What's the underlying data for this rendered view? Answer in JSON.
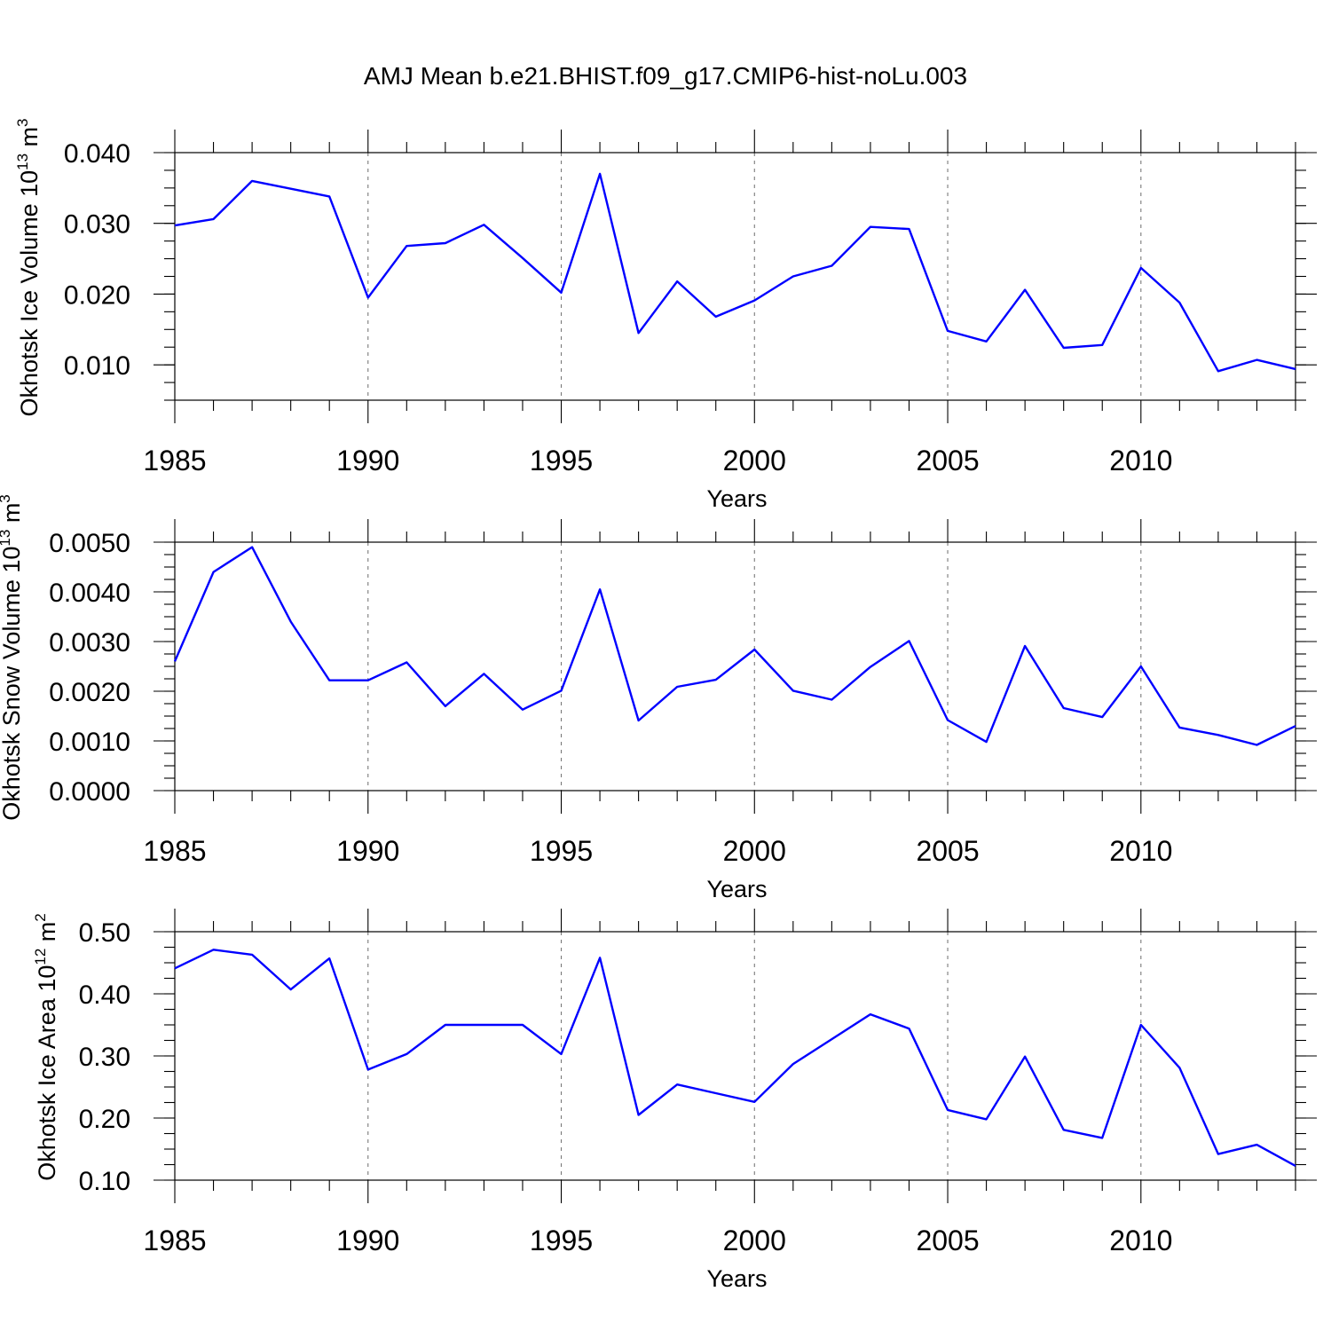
{
  "title": "AMJ Mean b.e21.BHIST.f09_g17.CMIP6-hist-noLu.003",
  "colors": {
    "line": "#0000ff",
    "axes": "#000000",
    "grid": "#7a7a7a"
  },
  "chart_data": [
    {
      "type": "line",
      "xlabel": "Years",
      "ylabel": {
        "text": "Okhotsk Ice Volume 10",
        "sup": "13",
        "unit": " m",
        "unit_sup": "3"
      },
      "xlim": [
        1985,
        2014
      ],
      "ylim": [
        0.005,
        0.04
      ],
      "xticks": [
        "1985",
        "1990",
        "1995",
        "2000",
        "2005",
        "2010"
      ],
      "yticks": [
        "0.010",
        "0.020",
        "0.030",
        "0.040"
      ],
      "grid": "vertical dashed at major x ticks",
      "x": [
        1985,
        1986,
        1987,
        1988,
        1989,
        1990,
        1991,
        1992,
        1993,
        1994,
        1995,
        1996,
        1997,
        1998,
        1999,
        2000,
        2001,
        2002,
        2003,
        2004,
        2005,
        2006,
        2007,
        2008,
        2009,
        2010,
        2011,
        2012,
        2013,
        2014
      ],
      "series": [
        {
          "values": [
            0.0297,
            0.0306,
            0.036,
            0.0349,
            0.0338,
            0.0195,
            0.0268,
            0.0272,
            0.0298,
            0.0251,
            0.0202,
            0.037,
            0.0145,
            0.0218,
            0.0168,
            0.0191,
            0.0225,
            0.024,
            0.0295,
            0.0292,
            0.0148,
            0.0133,
            0.0206,
            0.0124,
            0.0128,
            0.0237,
            0.0188,
            0.0091,
            0.0107,
            0.0094
          ]
        }
      ]
    },
    {
      "type": "line",
      "xlabel": "Years",
      "ylabel": {
        "text": "Okhotsk Snow Volume 10",
        "sup": "13",
        "unit": " m",
        "unit_sup": "3"
      },
      "xlim": [
        1985,
        2014
      ],
      "ylim": [
        0.0,
        0.005
      ],
      "xticks": [
        "1985",
        "1990",
        "1995",
        "2000",
        "2005",
        "2010"
      ],
      "yticks": [
        "0.0000",
        "0.0010",
        "0.0020",
        "0.0030",
        "0.0040",
        "0.0050"
      ],
      "grid": "vertical dashed at major x ticks",
      "x": [
        1985,
        1986,
        1987,
        1988,
        1989,
        1990,
        1991,
        1992,
        1993,
        1994,
        1995,
        1996,
        1997,
        1998,
        1999,
        2000,
        2001,
        2002,
        2003,
        2004,
        2005,
        2006,
        2007,
        2008,
        2009,
        2010,
        2011,
        2012,
        2013,
        2014
      ],
      "series": [
        {
          "values": [
            0.0026,
            0.0044,
            0.0049,
            0.0034,
            0.00222,
            0.00222,
            0.00258,
            0.0017,
            0.00235,
            0.00163,
            0.00201,
            0.00405,
            0.00141,
            0.00209,
            0.00223,
            0.00284,
            0.00201,
            0.00183,
            0.00249,
            0.00301,
            0.00142,
            0.00098,
            0.00291,
            0.00166,
            0.00148,
            0.0025,
            0.00127,
            0.00112,
            0.00092,
            0.0013
          ]
        }
      ]
    },
    {
      "type": "line",
      "xlabel": "Years",
      "ylabel": {
        "text": "Okhotsk Ice Area 10",
        "sup": "12",
        "unit": " m",
        "unit_sup": "2"
      },
      "xlim": [
        1985,
        2014
      ],
      "ylim": [
        0.1,
        0.5
      ],
      "xticks": [
        "1985",
        "1990",
        "1995",
        "2000",
        "2005",
        "2010"
      ],
      "yticks": [
        "0.10",
        "0.20",
        "0.30",
        "0.40",
        "0.50"
      ],
      "grid": "vertical dashed at major x ticks",
      "x": [
        1985,
        1986,
        1987,
        1988,
        1989,
        1990,
        1991,
        1992,
        1993,
        1994,
        1995,
        1996,
        1997,
        1998,
        1999,
        2000,
        2001,
        2002,
        2003,
        2004,
        2005,
        2006,
        2007,
        2008,
        2009,
        2010,
        2011,
        2012,
        2013,
        2014
      ],
      "series": [
        {
          "values": [
            0.441,
            0.471,
            0.463,
            0.407,
            0.457,
            0.278,
            0.303,
            0.35,
            0.35,
            0.35,
            0.303,
            0.458,
            0.205,
            0.254,
            0.24,
            0.226,
            0.287,
            0.327,
            0.367,
            0.344,
            0.213,
            0.198,
            0.299,
            0.181,
            0.168,
            0.35,
            0.281,
            0.142,
            0.157,
            0.123
          ]
        }
      ]
    }
  ]
}
